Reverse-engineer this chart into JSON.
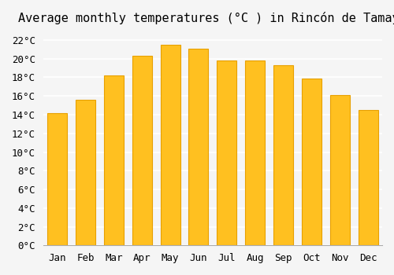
{
  "title": "Average monthly temperatures (°C ) in Rincón de Tamayo",
  "months": [
    "Jan",
    "Feb",
    "Mar",
    "Apr",
    "May",
    "Jun",
    "Jul",
    "Aug",
    "Sep",
    "Oct",
    "Nov",
    "Dec"
  ],
  "values": [
    14.2,
    15.6,
    18.2,
    20.3,
    21.5,
    21.1,
    19.8,
    19.8,
    19.3,
    17.9,
    16.1,
    14.5
  ],
  "bar_color": "#FFC020",
  "bar_edge_color": "#E8A000",
  "background_color": "#F5F5F5",
  "grid_color": "#FFFFFF",
  "ylim": [
    0,
    23
  ],
  "ytick_step": 2,
  "title_fontsize": 11,
  "tick_fontsize": 9,
  "font_family": "monospace"
}
